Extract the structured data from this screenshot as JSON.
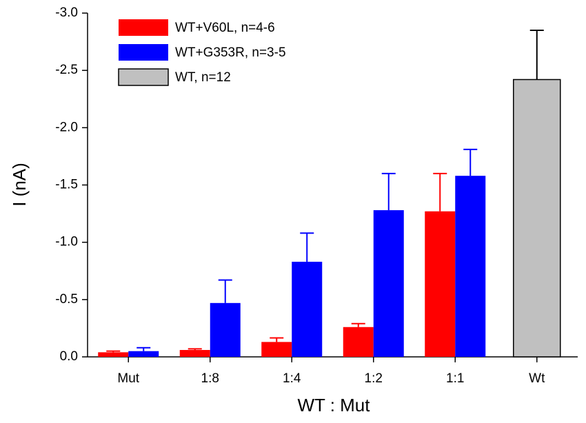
{
  "chart_data": {
    "type": "bar",
    "xlabel": "WT : Mut",
    "ylabel": "I (nA)",
    "categories": [
      "Mut",
      "1:8",
      "1:4",
      "1:2",
      "1:1",
      "Wt"
    ],
    "series": [
      {
        "name": "WT+V60L, n=4-6",
        "color": "#ff0000",
        "values": [
          -0.04,
          -0.06,
          -0.13,
          -0.26,
          -1.27,
          null
        ],
        "errors": [
          0.01,
          0.01,
          0.035,
          0.03,
          0.33,
          null
        ]
      },
      {
        "name": "WT+G353R, n=3-5",
        "color": "#0000ff",
        "values": [
          -0.05,
          -0.47,
          -0.83,
          -1.28,
          -1.58,
          null
        ],
        "errors": [
          0.03,
          0.2,
          0.25,
          0.32,
          0.23,
          null
        ]
      },
      {
        "name": "WT, n=12",
        "color": "#c0c0c0",
        "values": [
          null,
          null,
          null,
          null,
          null,
          -2.42
        ],
        "errors": [
          null,
          null,
          null,
          null,
          null,
          0.43
        ]
      }
    ],
    "ylim": [
      0,
      -3.0
    ],
    "yticks": [
      {
        "value": 0,
        "label": "0.0"
      },
      -0.5,
      {
        "value": -1.0,
        "label": "-1.0"
      },
      -1.5,
      {
        "value": -2.0,
        "label": "-2.0"
      },
      -2.5,
      {
        "value": -3.0,
        "label": "-3.0"
      }
    ],
    "legend": "upper left"
  }
}
